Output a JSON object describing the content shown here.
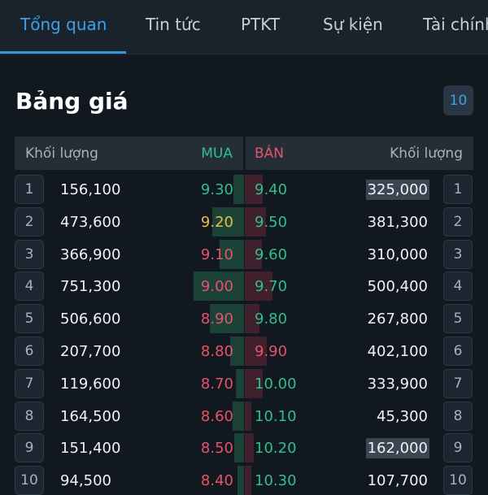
{
  "tabs": [
    {
      "label": "Tổng quan",
      "active": true
    },
    {
      "label": "Tin tức",
      "active": false
    },
    {
      "label": "PTKT",
      "active": false
    },
    {
      "label": "Sự kiện",
      "active": false
    },
    {
      "label": "Tài chính",
      "active": false
    }
  ],
  "header": {
    "title": "Bảng giá",
    "level_button": "10"
  },
  "columns": {
    "buy_volume": "Khối lượng",
    "buy": "MUA",
    "sell": "BÁN",
    "sell_volume": "Khối lượng"
  },
  "colors": {
    "accent": "#3aa3e6",
    "up": "#2fbf8e",
    "down": "#e8526b",
    "reference": "#e8c045"
  },
  "rows": [
    {
      "level": "1",
      "buy_volume": "156,100",
      "buy_price": "9.30",
      "buy_color": "up",
      "sell_price": "9.40",
      "sell_color": "up",
      "sell_volume": "325,000",
      "sell_highlight": true,
      "buy_depth": 0.21,
      "sell_depth": 0.43
    },
    {
      "level": "2",
      "buy_volume": "473,600",
      "buy_price": "9.20",
      "buy_color": "reference",
      "sell_price": "9.50",
      "sell_color": "up",
      "sell_volume": "381,300",
      "sell_highlight": false,
      "buy_depth": 0.63,
      "sell_depth": 0.51
    },
    {
      "level": "3",
      "buy_volume": "366,900",
      "buy_price": "9.10",
      "buy_color": "down",
      "sell_price": "9.60",
      "sell_color": "up",
      "sell_volume": "310,000",
      "sell_highlight": false,
      "buy_depth": 0.49,
      "sell_depth": 0.41
    },
    {
      "level": "4",
      "buy_volume": "751,300",
      "buy_price": "9.00",
      "buy_color": "down",
      "sell_price": "9.70",
      "sell_color": "up",
      "sell_volume": "500,400",
      "sell_highlight": false,
      "buy_depth": 1.0,
      "sell_depth": 0.67
    },
    {
      "level": "5",
      "buy_volume": "506,600",
      "buy_price": "8.90",
      "buy_color": "down",
      "sell_price": "9.80",
      "sell_color": "up",
      "sell_volume": "267,800",
      "sell_highlight": false,
      "buy_depth": 0.67,
      "sell_depth": 0.36
    },
    {
      "level": "6",
      "buy_volume": "207,700",
      "buy_price": "8.80",
      "buy_color": "down",
      "sell_price": "9.90",
      "sell_color": "down",
      "sell_volume": "402,100",
      "sell_highlight": false,
      "buy_depth": 0.28,
      "sell_depth": 0.54
    },
    {
      "level": "7",
      "buy_volume": "119,600",
      "buy_price": "8.70",
      "buy_color": "down",
      "sell_price": "10.00",
      "sell_color": "up",
      "sell_volume": "333,900",
      "sell_highlight": false,
      "buy_depth": 0.16,
      "sell_depth": 0.44
    },
    {
      "level": "8",
      "buy_volume": "164,500",
      "buy_price": "8.60",
      "buy_color": "down",
      "sell_price": "10.10",
      "sell_color": "up",
      "sell_volume": "45,300",
      "sell_highlight": false,
      "buy_depth": 0.22,
      "sell_depth": 0.06
    },
    {
      "level": "9",
      "buy_volume": "151,400",
      "buy_price": "8.50",
      "buy_color": "down",
      "sell_price": "10.20",
      "sell_color": "up",
      "sell_volume": "162,000",
      "sell_highlight": true,
      "buy_depth": 0.2,
      "sell_depth": 0.22
    },
    {
      "level": "10",
      "buy_volume": "94,500",
      "buy_price": "8.40",
      "buy_color": "down",
      "sell_price": "10.30",
      "sell_color": "up",
      "sell_volume": "107,700",
      "sell_highlight": false,
      "buy_depth": 0.13,
      "sell_depth": 0.14
    }
  ]
}
